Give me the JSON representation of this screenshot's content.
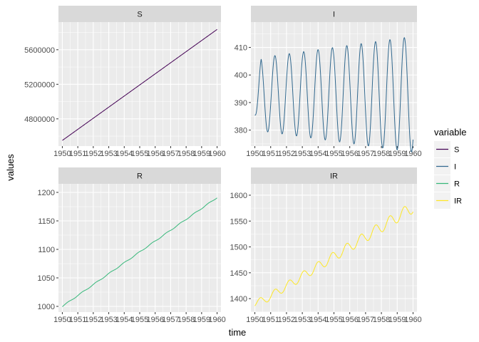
{
  "chart_data": {
    "type": "line",
    "layout": "facet-grid-2x2",
    "xlabel": "time",
    "ylabel": "values",
    "legend": {
      "title": "variable",
      "placement": "right",
      "entries": [
        "S",
        "I",
        "R",
        "IR"
      ]
    },
    "colors": {
      "S": "#440154",
      "I": "#31688e",
      "R": "#35b779",
      "IR": "#fde725",
      "panel_bg": "#ebebeb",
      "strip_bg": "#d9d9d9",
      "grid": "#ffffff"
    },
    "x_ticks": [
      "1950",
      "1951",
      "1952",
      "1953",
      "1954",
      "1955",
      "1956",
      "1957",
      "1958",
      "1959",
      "1960"
    ],
    "panels": [
      {
        "series": "S",
        "strip": "S",
        "xlim": [
          1949.75,
          1960.25
        ],
        "ylim": [
          4485000,
          5920000
        ],
        "yticks": [
          4800000,
          5200000,
          5600000
        ],
        "ytick_labels": [
          "4800000",
          "5200000",
          "5600000"
        ],
        "shape": {
          "kind": "linear",
          "start": 4550000,
          "end": 5835000,
          "osc_amp": 0,
          "osc_cycles": 0
        }
      },
      {
        "series": "I",
        "strip": "I",
        "xlim": [
          1949.75,
          1960.25
        ],
        "ylim": [
          374.2,
          419.2
        ],
        "yticks": [
          380,
          390,
          400,
          410
        ],
        "ytick_labels": [
          "380",
          "390",
          "400",
          "410"
        ],
        "shape": {
          "kind": "oscillation",
          "mean": 393,
          "amp_start": 13,
          "amp_end": 21,
          "osc_cycles": 11,
          "start": 385.5,
          "end": 385.5
        }
      },
      {
        "series": "R",
        "strip": "R",
        "xlim": [
          1949.75,
          1960.25
        ],
        "ylim": [
          990,
          1215
        ],
        "yticks": [
          1000,
          1050,
          1100,
          1150,
          1200
        ],
        "ytick_labels": [
          "1000",
          "1050",
          "1100",
          "1150",
          "1200"
        ],
        "shape": {
          "kind": "linear",
          "start": 1000,
          "end": 1191,
          "osc_amp": 0.8,
          "osc_cycles": 11
        }
      },
      {
        "series": "IR",
        "strip": "IR",
        "xlim": [
          1949.75,
          1960.25
        ],
        "ylim": [
          1374,
          1622
        ],
        "yticks": [
          1400,
          1450,
          1500,
          1550,
          1600
        ],
        "ytick_labels": [
          "1400",
          "1450",
          "1500",
          "1550",
          "1600"
        ],
        "shape": {
          "kind": "trend-oscillation",
          "start": 1386,
          "end": 1577,
          "amp_start": 13,
          "amp_end": 21,
          "osc_cycles": 11
        }
      }
    ],
    "grid": true
  }
}
